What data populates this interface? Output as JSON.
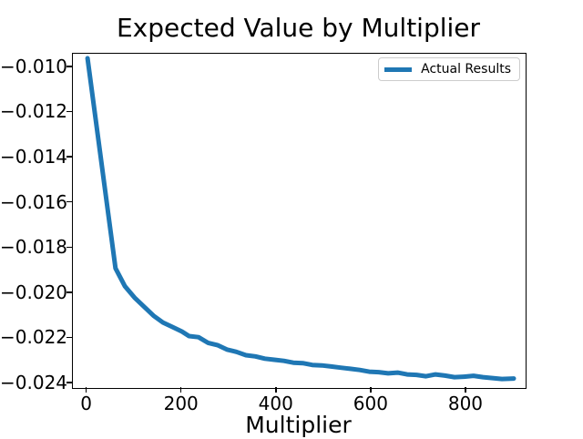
{
  "colors": {
    "line": "#1f77b4",
    "spine": "#000000",
    "legend_border": "#cccccc",
    "background": "#ffffff"
  },
  "chart_data": {
    "type": "line",
    "title": "Expected Value by Multiplier",
    "xlabel": "Multiplier",
    "ylabel": "",
    "xlim": [
      -30,
      925
    ],
    "ylim": [
      -0.0242,
      -0.0094
    ],
    "grid": false,
    "legend_position": "upper right",
    "xticks": {
      "values": [
        0,
        200,
        400,
        600,
        800
      ],
      "labels": [
        "0",
        "200",
        "400",
        "600",
        "800"
      ]
    },
    "yticks": {
      "values": [
        -0.01,
        -0.012,
        -0.014,
        -0.016,
        -0.018,
        -0.02,
        -0.022,
        -0.024
      ],
      "labels": [
        "−0.010",
        "−0.012",
        "−0.014",
        "−0.016",
        "−0.018",
        "−0.020",
        "−0.022",
        "−0.024"
      ]
    },
    "legend": {
      "entries": [
        {
          "label": "Actual Results",
          "color": "#1f77b4"
        }
      ]
    },
    "series": [
      {
        "name": "Actual Results",
        "color": "#1f77b4",
        "linewidth": 5,
        "points": [
          [
            1,
            -0.0096
          ],
          [
            60,
            -0.0189
          ],
          [
            80,
            -0.0197
          ],
          [
            100,
            -0.0202
          ],
          [
            120,
            -0.0206
          ],
          [
            140,
            -0.021
          ],
          [
            160,
            -0.0213
          ],
          [
            180,
            -0.0215
          ],
          [
            200,
            -0.0217
          ],
          [
            215,
            -0.0219
          ],
          [
            235,
            -0.02195
          ],
          [
            255,
            -0.0222
          ],
          [
            275,
            -0.0223
          ],
          [
            295,
            -0.0225
          ],
          [
            315,
            -0.0226
          ],
          [
            335,
            -0.02275
          ],
          [
            355,
            -0.0228
          ],
          [
            375,
            -0.0229
          ],
          [
            395,
            -0.02295
          ],
          [
            415,
            -0.023
          ],
          [
            435,
            -0.02308
          ],
          [
            455,
            -0.0231
          ],
          [
            475,
            -0.02318
          ],
          [
            495,
            -0.0232
          ],
          [
            515,
            -0.02325
          ],
          [
            535,
            -0.0233
          ],
          [
            555,
            -0.02335
          ],
          [
            575,
            -0.0234
          ],
          [
            595,
            -0.02348
          ],
          [
            615,
            -0.0235
          ],
          [
            635,
            -0.02355
          ],
          [
            655,
            -0.02352
          ],
          [
            675,
            -0.0236
          ],
          [
            695,
            -0.02362
          ],
          [
            715,
            -0.02368
          ],
          [
            735,
            -0.0236
          ],
          [
            755,
            -0.02365
          ],
          [
            775,
            -0.02372
          ],
          [
            795,
            -0.0237
          ],
          [
            815,
            -0.02366
          ],
          [
            835,
            -0.02372
          ],
          [
            855,
            -0.02376
          ],
          [
            875,
            -0.0238
          ],
          [
            900,
            -0.02378
          ]
        ]
      }
    ]
  }
}
